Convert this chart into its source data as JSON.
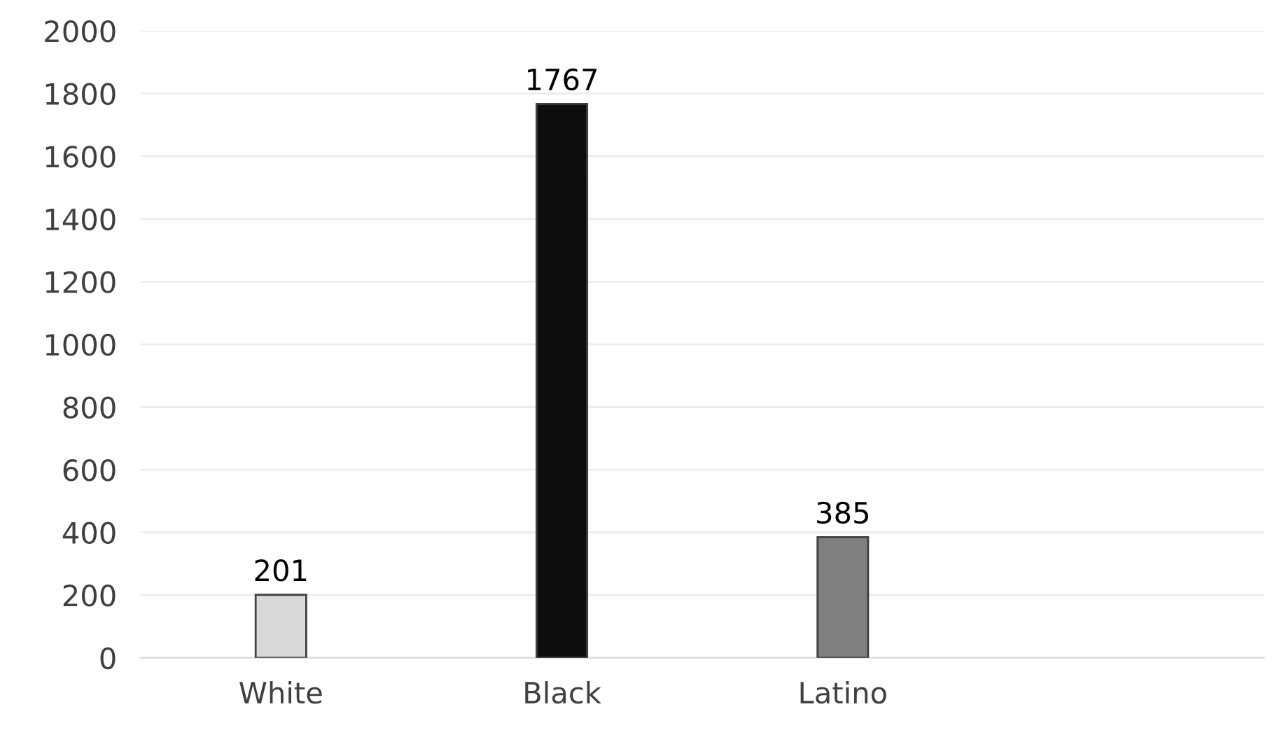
{
  "chart_data": {
    "type": "bar",
    "categories": [
      "White",
      "Black",
      "Latino",
      null
    ],
    "values": [
      201,
      1767,
      385,
      null
    ],
    "colors": [
      "#d9d9d9",
      "#0d0d0d",
      "#7f7f7f",
      "#7f7f7f"
    ],
    "ylim": [
      0,
      2000
    ],
    "yticks": [
      0,
      200,
      400,
      600,
      800,
      1000,
      1200,
      1400,
      1600,
      1800,
      2000
    ],
    "grid": "y",
    "data_labels": true
  }
}
